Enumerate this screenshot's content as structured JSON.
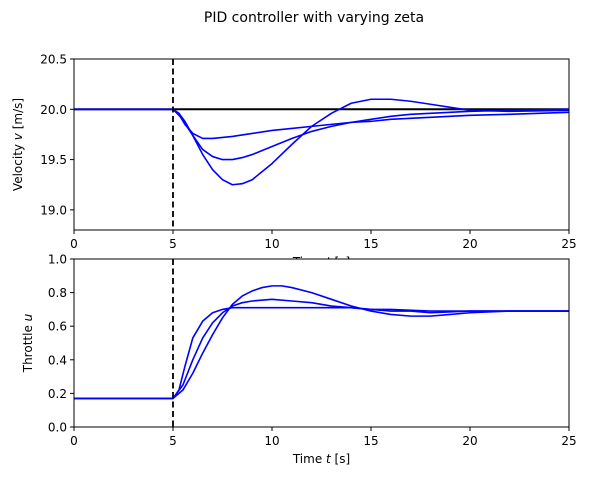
{
  "figure": {
    "title": "PID controller with varying zeta"
  },
  "chart_data": [
    {
      "type": "line",
      "name": "velocity-plot",
      "xlabel_parts": [
        "Time ",
        "t",
        " [s]"
      ],
      "ylabel_parts": [
        "Velocity ",
        "v",
        " [m/s]"
      ],
      "xlim": [
        0,
        25
      ],
      "ylim": [
        18.8,
        20.5
      ],
      "xticks": [
        0,
        5,
        10,
        15,
        20,
        25
      ],
      "yticks": [
        19.0,
        19.5,
        20.0,
        20.5
      ],
      "ytick_labels": [
        "19.0",
        "19.5",
        "20.0",
        "20.5"
      ],
      "grid": false,
      "reference": {
        "y": 20.0,
        "color": "#000000"
      },
      "vline": {
        "x": 5,
        "style": "dashed",
        "color": "#000000"
      },
      "series_color": "#0000ff",
      "series": [
        {
          "x": [
            0,
            5,
            5.3,
            5.6,
            6,
            6.5,
            7,
            7.5,
            8,
            9,
            10,
            11,
            12,
            13,
            14,
            15,
            16,
            17,
            18,
            19,
            20,
            22,
            25
          ],
          "y": [
            20.0,
            20.0,
            19.95,
            19.85,
            19.76,
            19.71,
            19.71,
            19.72,
            19.73,
            19.76,
            19.79,
            19.81,
            19.83,
            19.85,
            19.87,
            19.88,
            19.9,
            19.91,
            19.92,
            19.93,
            19.94,
            19.95,
            19.97
          ]
        },
        {
          "x": [
            0,
            5,
            5.4,
            6,
            6.5,
            7,
            7.5,
            8,
            8.5,
            9,
            10,
            11,
            12,
            13,
            14,
            15,
            16,
            17,
            18,
            19,
            20,
            22,
            25
          ],
          "y": [
            20.0,
            20.0,
            19.92,
            19.74,
            19.6,
            19.53,
            19.5,
            19.5,
            19.52,
            19.55,
            19.63,
            19.71,
            19.78,
            19.83,
            19.87,
            19.9,
            19.93,
            19.95,
            19.96,
            19.97,
            19.98,
            19.99,
            20.0
          ]
        },
        {
          "x": [
            0,
            5,
            5.3,
            5.6,
            6,
            6.5,
            7,
            7.5,
            8,
            8.5,
            9,
            9.5,
            10,
            11,
            12,
            13,
            14,
            15,
            16,
            17,
            18,
            19,
            20,
            22,
            25
          ],
          "y": [
            20.0,
            20.0,
            19.96,
            19.88,
            19.74,
            19.55,
            19.4,
            19.3,
            19.25,
            19.26,
            19.3,
            19.38,
            19.46,
            19.65,
            19.83,
            19.96,
            20.06,
            20.1,
            20.1,
            20.08,
            20.05,
            20.02,
            19.99,
            19.98,
            19.99
          ]
        }
      ]
    },
    {
      "type": "line",
      "name": "throttle-plot",
      "xlabel_parts": [
        "Time ",
        "t",
        " [s]"
      ],
      "ylabel_parts": [
        "Throttle ",
        "u",
        ""
      ],
      "xlim": [
        0,
        25
      ],
      "ylim": [
        0,
        1.0
      ],
      "xticks": [
        0,
        5,
        10,
        15,
        20,
        25
      ],
      "yticks": [
        0.0,
        0.2,
        0.4,
        0.6,
        0.8,
        1.0
      ],
      "ytick_labels": [
        "0.0",
        "0.2",
        "0.4",
        "0.6",
        "0.8",
        "1.0"
      ],
      "grid": false,
      "vline": {
        "x": 5,
        "style": "dashed",
        "color": "#000000"
      },
      "series_color": "#0000ff",
      "series": [
        {
          "x": [
            0,
            5,
            5.3,
            5.6,
            6,
            6.5,
            7,
            7.5,
            8,
            9,
            10,
            12,
            14,
            15,
            16,
            18,
            20,
            22,
            25
          ],
          "y": [
            0.17,
            0.17,
            0.22,
            0.36,
            0.53,
            0.63,
            0.68,
            0.7,
            0.71,
            0.71,
            0.71,
            0.71,
            0.71,
            0.7,
            0.7,
            0.69,
            0.69,
            0.69,
            0.69
          ]
        },
        {
          "x": [
            0,
            5,
            5.5,
            6,
            6.5,
            7,
            7.5,
            8,
            8.5,
            9,
            10,
            11,
            12,
            13,
            14,
            15,
            16,
            17,
            18,
            20,
            22,
            25
          ],
          "y": [
            0.17,
            0.17,
            0.25,
            0.4,
            0.53,
            0.62,
            0.68,
            0.72,
            0.74,
            0.75,
            0.76,
            0.75,
            0.74,
            0.72,
            0.71,
            0.7,
            0.69,
            0.69,
            0.68,
            0.69,
            0.69,
            0.69
          ]
        },
        {
          "x": [
            0,
            5,
            5.5,
            6,
            6.5,
            7,
            7.5,
            8,
            8.5,
            9,
            9.5,
            10,
            10.5,
            11,
            12,
            13,
            14,
            15,
            16,
            17,
            18,
            19,
            20,
            22,
            25
          ],
          "y": [
            0.17,
            0.17,
            0.22,
            0.32,
            0.44,
            0.55,
            0.65,
            0.73,
            0.78,
            0.81,
            0.83,
            0.84,
            0.84,
            0.83,
            0.8,
            0.76,
            0.72,
            0.69,
            0.67,
            0.66,
            0.66,
            0.67,
            0.68,
            0.69,
            0.69
          ]
        }
      ]
    }
  ]
}
